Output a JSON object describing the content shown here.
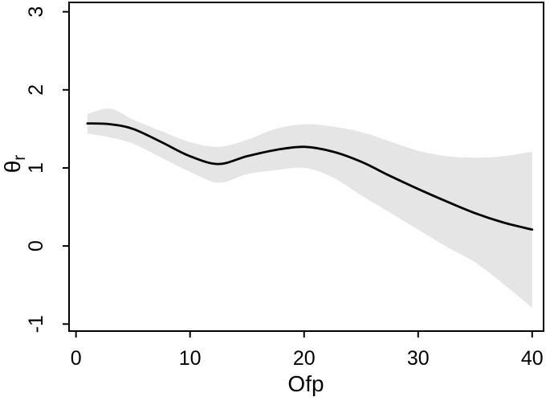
{
  "figure": {
    "background": "#ffffff",
    "plot_bg": "#ffffff"
  },
  "chart_data": {
    "type": "line",
    "title": "",
    "xlabel": "Ofp",
    "ylabel": "θ",
    "ylabel_subscript": "r",
    "grid": false,
    "legend": "none",
    "xlim": [
      -0.61,
      41.0
    ],
    "ylim": [
      -1.09,
      3.12
    ],
    "axes": {
      "x": {
        "tick_values": [
          0,
          10,
          20,
          30,
          40
        ],
        "tick_labels": [
          "0",
          "10",
          "20",
          "30",
          "40"
        ]
      },
      "y": {
        "tick_values": [
          -1,
          0,
          1,
          2,
          3
        ],
        "tick_labels": [
          "-1",
          "0",
          "1",
          "2",
          "3"
        ]
      }
    },
    "colors": {
      "line": "#000000",
      "band": "#e5e5e5",
      "axis": "#000000"
    },
    "x": [
      1,
      3,
      5,
      7.5,
      10,
      12.5,
      15,
      17.5,
      20,
      22.5,
      25,
      27.5,
      30,
      32.5,
      35,
      37.5,
      40
    ],
    "series": [
      {
        "name": "fitted-smooth",
        "style": "line",
        "values": [
          1.57,
          1.56,
          1.5,
          1.33,
          1.15,
          1.05,
          1.15,
          1.23,
          1.27,
          1.21,
          1.08,
          0.9,
          0.73,
          0.57,
          0.42,
          0.3,
          0.21
        ]
      },
      {
        "name": "confidence-band",
        "style": "band",
        "upper": [
          1.69,
          1.76,
          1.62,
          1.47,
          1.33,
          1.27,
          1.36,
          1.5,
          1.56,
          1.53,
          1.46,
          1.34,
          1.22,
          1.15,
          1.13,
          1.15,
          1.21
        ],
        "lower": [
          1.44,
          1.39,
          1.31,
          1.13,
          0.95,
          0.81,
          0.92,
          0.97,
          1.0,
          0.88,
          0.65,
          0.43,
          0.21,
          -0.01,
          -0.21,
          -0.49,
          -0.79
        ]
      }
    ]
  }
}
